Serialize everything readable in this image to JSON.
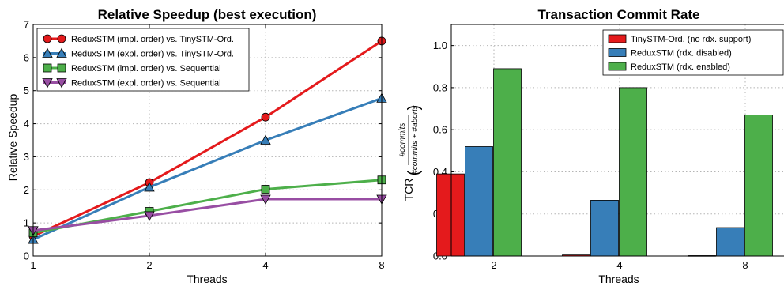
{
  "chart_data": [
    {
      "type": "line",
      "title": "Relative Speedup (best execution)",
      "xlabel": "Threads",
      "ylabel": "Relative Speedup",
      "x": [
        1,
        2,
        4,
        8
      ],
      "xticks": [
        "1",
        "2",
        "4",
        "8"
      ],
      "xscale": "log2",
      "xlim": [
        1,
        8
      ],
      "ylim": [
        0,
        7
      ],
      "yticks": [
        "0",
        "1",
        "2",
        "3",
        "4",
        "5",
        "6",
        "7"
      ],
      "grid": true,
      "legend_position": "top-left",
      "series": [
        {
          "name": "ReduxSTM (impl. order) vs. TinySTM-Ord.",
          "marker": "circle",
          "color": "#e41a1c",
          "values": [
            0.6,
            2.22,
            4.2,
            6.5
          ]
        },
        {
          "name": "ReduxSTM (expl. order) vs. TinySTM-Ord.",
          "marker": "triangle-up",
          "color": "#377eb8",
          "values": [
            0.5,
            2.08,
            3.5,
            4.77
          ]
        },
        {
          "name": "ReduxSTM (impl. order) vs. Sequential",
          "marker": "square",
          "color": "#4daf4a",
          "values": [
            0.7,
            1.35,
            2.02,
            2.3
          ]
        },
        {
          "name": "ReduxSTM (expl. order) vs. Sequential",
          "marker": "triangle-down",
          "color": "#984ea3",
          "values": [
            0.77,
            1.22,
            1.72,
            1.72
          ]
        }
      ]
    },
    {
      "type": "bar",
      "title": "Transaction Commit Rate",
      "xlabel": "Threads",
      "ylabel_prefix": "TCR",
      "ylabel_numerator": "#commits",
      "ylabel_denominator": "#commits + #aborts",
      "categories": [
        "2",
        "4",
        "8"
      ],
      "ylim": [
        0,
        1.1
      ],
      "yticks": [
        "0.0",
        "0.2",
        "0.4",
        "0.6",
        "0.8",
        "1.0"
      ],
      "grid": true,
      "legend_position": "top-right",
      "series": [
        {
          "name": "TinySTM-Ord. (no rdx. support)",
          "color": "#e41a1c",
          "values": [
            0.39,
            0.005,
            0.002
          ]
        },
        {
          "name": "ReduxSTM (rdx. disabled)",
          "color": "#377eb8",
          "values": [
            0.52,
            0.265,
            0.135
          ]
        },
        {
          "name": "ReduxSTM (rdx. enabled)",
          "color": "#4daf4a",
          "values": [
            0.89,
            0.8,
            0.67
          ]
        }
      ]
    }
  ]
}
